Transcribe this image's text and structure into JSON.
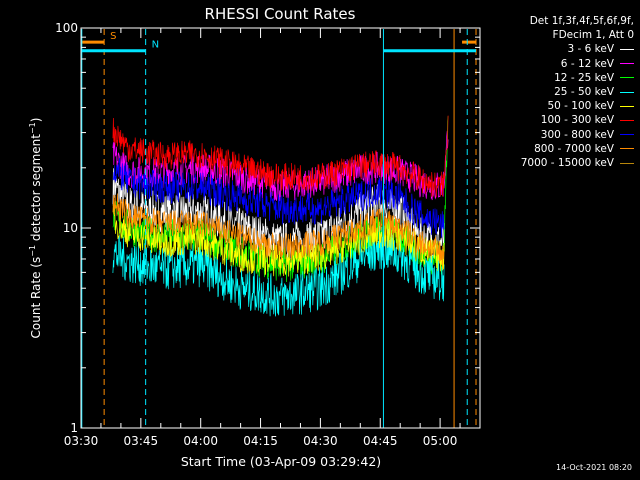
{
  "chart_data": {
    "type": "line",
    "title": "RHESSI Count Rates",
    "xlabel": "Start Time (03-Apr-09 03:29:42)",
    "ylabel_parts": {
      "pre": "Count Rate (s",
      "sup": "−1",
      "post": " detector segment",
      "sup2": "−1",
      "end": ")"
    },
    "yscale": "log",
    "ylim": [
      1,
      100
    ],
    "y_ticks": [
      {
        "v": 1,
        "label": "1"
      },
      {
        "v": 10,
        "label": "10"
      },
      {
        "v": 100,
        "label": "100"
      }
    ],
    "xlim_min": [
      0,
      100
    ],
    "x_ticks": [
      {
        "v": 0,
        "label": "03:30"
      },
      {
        "v": 15,
        "label": "03:45"
      },
      {
        "v": 30,
        "label": "04:00"
      },
      {
        "v": 45,
        "label": "04:15"
      },
      {
        "v": 60,
        "label": "04:30"
      },
      {
        "v": 75,
        "label": "04:45"
      },
      {
        "v": 90,
        "label": "05:00"
      }
    ],
    "series": [
      {
        "name": "3 - 6 keV",
        "color": "#ffffff",
        "amp": 0.1,
        "pts": [
          [
            8,
            16.5
          ],
          [
            12,
            13
          ],
          [
            20,
            12
          ],
          [
            30,
            12
          ],
          [
            40,
            10
          ],
          [
            50,
            8.5
          ],
          [
            60,
            9
          ],
          [
            70,
            12
          ],
          [
            75,
            13.5
          ],
          [
            80,
            12
          ],
          [
            85,
            9
          ],
          [
            90,
            8.5
          ],
          [
            91,
            8.5
          ]
        ]
      },
      {
        "name": "6 - 12 keV",
        "color": "#ff00ff",
        "amp": 0.08,
        "pts": [
          [
            8,
            23
          ],
          [
            12,
            19
          ],
          [
            20,
            19
          ],
          [
            30,
            20
          ],
          [
            40,
            18
          ],
          [
            50,
            16
          ],
          [
            60,
            17
          ],
          [
            70,
            19.5
          ],
          [
            75,
            20
          ],
          [
            80,
            19
          ],
          [
            85,
            17
          ],
          [
            90,
            16
          ],
          [
            91,
            17
          ],
          [
            92,
            32
          ]
        ]
      },
      {
        "name": "12 - 25 keV",
        "color": "#00ff00",
        "amp": 0.09,
        "pts": [
          [
            8,
            11.5
          ],
          [
            12,
            10
          ],
          [
            20,
            9
          ],
          [
            30,
            9.2
          ],
          [
            40,
            7.5
          ],
          [
            50,
            6.5
          ],
          [
            60,
            7
          ],
          [
            70,
            9
          ],
          [
            75,
            10
          ],
          [
            80,
            9
          ],
          [
            85,
            7.5
          ],
          [
            90,
            7
          ],
          [
            91,
            7.5
          ],
          [
            92,
            43
          ]
        ]
      },
      {
        "name": "25 - 50 keV",
        "color": "#00ffff",
        "amp": 0.11,
        "pts": [
          [
            8,
            7.5
          ],
          [
            12,
            6.8
          ],
          [
            20,
            6.2
          ],
          [
            30,
            6.5
          ],
          [
            40,
            5
          ],
          [
            50,
            4.5
          ],
          [
            60,
            5
          ],
          [
            70,
            7
          ],
          [
            75,
            8
          ],
          [
            80,
            7.3
          ],
          [
            85,
            6
          ],
          [
            90,
            5.5
          ],
          [
            91,
            5.5
          ]
        ]
      },
      {
        "name": "50 - 100 keV",
        "color": "#ffff00",
        "amp": 0.08,
        "pts": [
          [
            8,
            11
          ],
          [
            12,
            9.5
          ],
          [
            20,
            8.5
          ],
          [
            30,
            8.8
          ],
          [
            40,
            7.2
          ],
          [
            50,
            6.8
          ],
          [
            60,
            7.2
          ],
          [
            70,
            8.8
          ],
          [
            75,
            9.5
          ],
          [
            80,
            9
          ],
          [
            85,
            7.8
          ],
          [
            90,
            7.2
          ],
          [
            91,
            7.3
          ]
        ]
      },
      {
        "name": "100 - 300 keV",
        "color": "#ff0000",
        "amp": 0.07,
        "pts": [
          [
            8,
            31
          ],
          [
            12,
            25
          ],
          [
            20,
            23
          ],
          [
            30,
            23.5
          ],
          [
            40,
            20
          ],
          [
            50,
            18
          ],
          [
            60,
            18
          ],
          [
            70,
            20.5
          ],
          [
            75,
            21
          ],
          [
            80,
            20
          ],
          [
            85,
            17.5
          ],
          [
            90,
            16
          ],
          [
            91,
            17
          ],
          [
            92,
            34
          ]
        ]
      },
      {
        "name": "300 - 800 keV",
        "color": "#0000ff",
        "amp": 0.08,
        "pts": [
          [
            8,
            20
          ],
          [
            12,
            17
          ],
          [
            20,
            16
          ],
          [
            30,
            16
          ],
          [
            40,
            14
          ],
          [
            50,
            12.5
          ],
          [
            60,
            12.5
          ],
          [
            70,
            14.5
          ],
          [
            75,
            15.5
          ],
          [
            80,
            14
          ],
          [
            85,
            11.5
          ],
          [
            90,
            10.5
          ],
          [
            91,
            10
          ]
        ]
      },
      {
        "name": "800 - 7000 keV",
        "color": "#ff8c00",
        "amp": 0.07,
        "pts": [
          [
            8,
            13.5
          ],
          [
            12,
            11.5
          ],
          [
            20,
            10.5
          ],
          [
            30,
            10.5
          ],
          [
            40,
            9
          ],
          [
            50,
            8
          ],
          [
            60,
            8.5
          ],
          [
            70,
            10
          ],
          [
            75,
            11
          ],
          [
            80,
            10
          ],
          [
            85,
            8.5
          ],
          [
            90,
            7.5
          ],
          [
            91,
            7.5
          ]
        ]
      },
      {
        "name": "7000 - 15000 keV",
        "color": "#b8860b",
        "amp": 0.03,
        "pts": []
      }
    ],
    "annotations": [
      {
        "label": "S",
        "color": "#ff8c00",
        "bars": [
          [
            0,
            5.8
          ],
          [
            95.5,
            99
          ]
        ],
        "y": 85,
        "dashed_x": [
          5.8,
          99
        ],
        "solid_x": [
          93.5
        ]
      },
      {
        "label": "N",
        "color": "#00e5ff",
        "bars": [
          [
            0,
            16.2
          ],
          [
            75.8,
            99
          ]
        ],
        "y": 77,
        "dashed_x": [
          16.2,
          96.8
        ],
        "solid_x": [
          0.2,
          75.8
        ]
      }
    ]
  },
  "legend": {
    "header_1": "Det 1f,3f,4f,5f,6f,9f,",
    "header_2": "FDecim 1, Att 0"
  },
  "footer": {
    "timestamp": "14-Oct-2021 08:20"
  }
}
